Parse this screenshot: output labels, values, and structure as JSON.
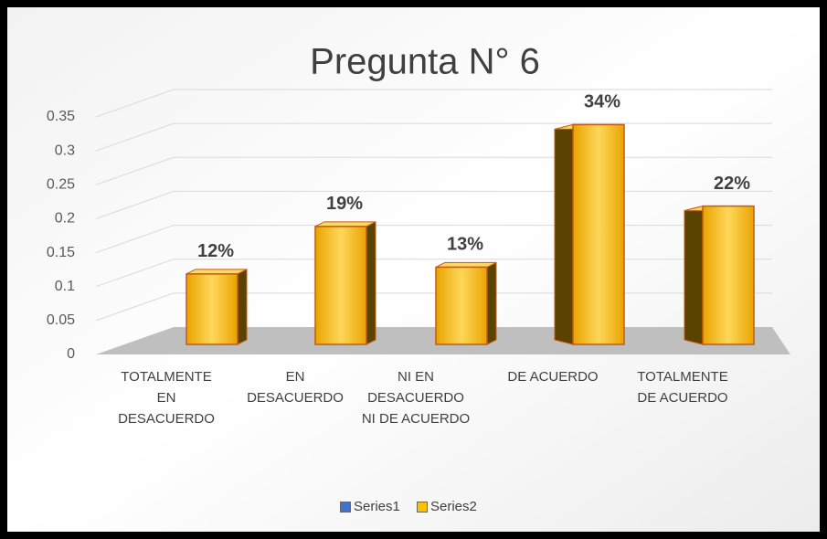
{
  "chart_data": {
    "type": "bar3d",
    "title": "Pregunta N° 6",
    "categories": [
      "TOTALMENTE EN DESACUERDO",
      "EN DESACUERDO",
      "NI EN DESACUERDO NI DE ACUERDO",
      "DE ACUERDO",
      "TOTALMENTE DE ACUERDO"
    ],
    "series": [
      {
        "name": "Series1",
        "color": "#4472c4",
        "values": [
          0,
          0,
          0,
          0,
          0
        ]
      },
      {
        "name": "Series2",
        "color": "#ffc000",
        "values": [
          0.12,
          0.19,
          0.13,
          0.34,
          0.22
        ],
        "value_labels": [
          "12%",
          "19%",
          "13%",
          "34%",
          "22%"
        ]
      }
    ],
    "ylim": [
      0,
      0.35
    ],
    "yticks": [
      0,
      0.05,
      0.1,
      0.15,
      0.2,
      0.25,
      0.3,
      0.35
    ],
    "grid": true,
    "legend": "bottom"
  }
}
